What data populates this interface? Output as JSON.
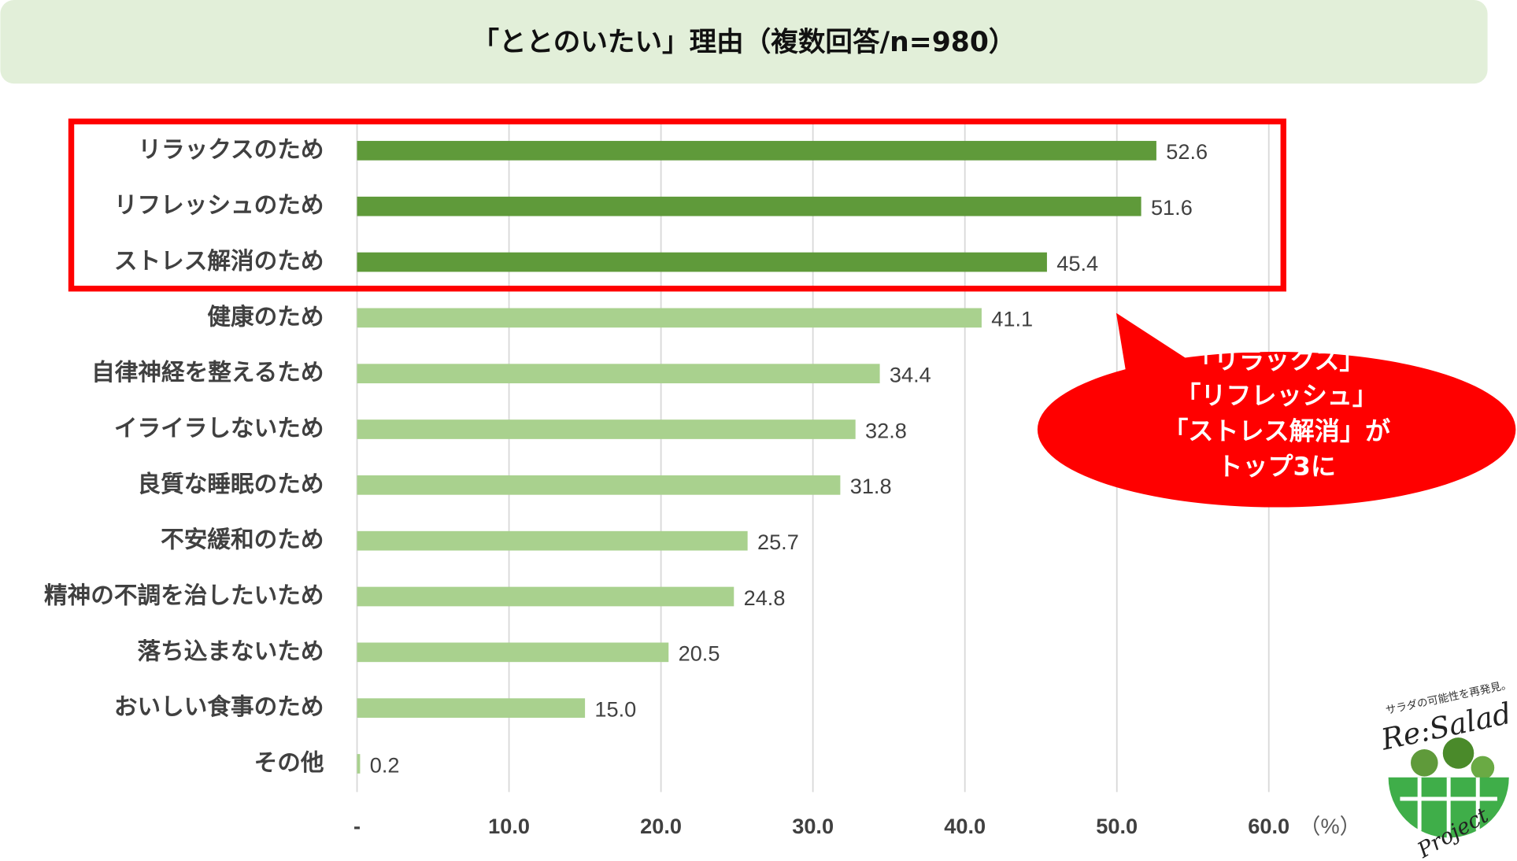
{
  "chart_data": {
    "type": "bar",
    "orientation": "horizontal",
    "title": "「ととのいたい」理由（複数回答/n=980）",
    "categories": [
      "リラックスのため",
      "リフレッシュのため",
      "ストレス解消のため",
      "健康のため",
      "自律神経を整えるため",
      "イライラしないため",
      "良質な睡眠のため",
      "不安緩和のため",
      "精神の不調を治したいため",
      "落ち込まないため",
      "おいしい食事のため",
      "その他"
    ],
    "values": [
      52.6,
      51.6,
      45.4,
      41.1,
      34.4,
      32.8,
      31.8,
      25.7,
      24.8,
      20.5,
      15.0,
      0.2
    ],
    "value_labels": [
      "52.6",
      "51.6",
      "45.4",
      "41.1",
      "34.4",
      "32.8",
      "31.8",
      "25.7",
      "24.8",
      "20.5",
      "15.0",
      "0.2"
    ],
    "colors": [
      "#5f9a3a",
      "#5f9a3a",
      "#5f9a3a",
      "#a9d18e",
      "#a9d18e",
      "#a9d18e",
      "#a9d18e",
      "#a9d18e",
      "#a9d18e",
      "#a9d18e",
      "#a9d18e",
      "#a9d18e"
    ],
    "xlim": [
      0,
      60
    ],
    "xticks": [
      {
        "value": 0,
        "label": "-"
      },
      {
        "value": 10,
        "label": "10.0"
      },
      {
        "value": 20,
        "label": "20.0"
      },
      {
        "value": 30,
        "label": "30.0"
      },
      {
        "value": 40,
        "label": "40.0"
      },
      {
        "value": 50,
        "label": "50.0"
      },
      {
        "value": 60,
        "label": "60.0"
      }
    ],
    "x_unit": "（%）",
    "grid": true,
    "annotation": [
      "「リラックス」",
      "「リフレッシュ」",
      "「ストレス解消」が",
      "トップ3に"
    ]
  },
  "logo": {
    "tagline": "サラダの可能性を再発見。",
    "name": "Re:Salad",
    "project": "Project"
  }
}
